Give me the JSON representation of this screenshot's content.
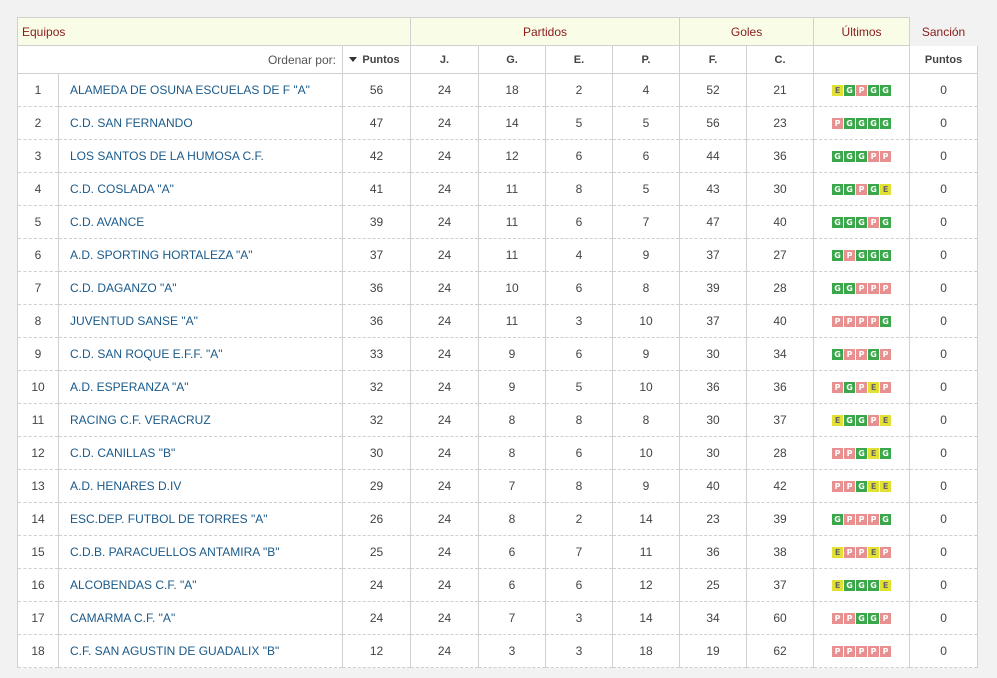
{
  "headers": {
    "equipos": "Equipos",
    "partidos": "Partidos",
    "goles": "Goles",
    "ultimos": "Últimos",
    "sancion": "Sanción",
    "ordenar_por": "Ordenar por:",
    "puntos": "Puntos",
    "j": "J.",
    "g": "G.",
    "e": "E.",
    "p": "P.",
    "f": "F.",
    "c": "C.",
    "sancion_puntos": "Puntos"
  },
  "colors": {
    "win": "#3aa84a",
    "loss": "#e89090",
    "draw": "#e2e034",
    "team_link": "#1a5a8a",
    "header_text": "#8b1a1a"
  },
  "rows": [
    {
      "pos": "1",
      "team": "ALAMEDA DE OSUNA ESCUELAS DE F \"A\"",
      "pts": "56",
      "j": "24",
      "g": "18",
      "e": "2",
      "p": "4",
      "f": "52",
      "c": "21",
      "last": [
        "E",
        "G",
        "P",
        "G",
        "G"
      ],
      "sancion": "0"
    },
    {
      "pos": "2",
      "team": "C.D. SAN FERNANDO",
      "pts": "47",
      "j": "24",
      "g": "14",
      "e": "5",
      "p": "5",
      "f": "56",
      "c": "23",
      "last": [
        "P",
        "G",
        "G",
        "G",
        "G"
      ],
      "sancion": "0"
    },
    {
      "pos": "3",
      "team": "LOS SANTOS DE LA HUMOSA C.F.",
      "pts": "42",
      "j": "24",
      "g": "12",
      "e": "6",
      "p": "6",
      "f": "44",
      "c": "36",
      "last": [
        "G",
        "G",
        "G",
        "P",
        "P"
      ],
      "sancion": "0"
    },
    {
      "pos": "4",
      "team": "C.D. COSLADA \"A\"",
      "pts": "41",
      "j": "24",
      "g": "11",
      "e": "8",
      "p": "5",
      "f": "43",
      "c": "30",
      "last": [
        "G",
        "G",
        "P",
        "G",
        "E"
      ],
      "sancion": "0"
    },
    {
      "pos": "5",
      "team": "C.D. AVANCE",
      "pts": "39",
      "j": "24",
      "g": "11",
      "e": "6",
      "p": "7",
      "f": "47",
      "c": "40",
      "last": [
        "G",
        "G",
        "G",
        "P",
        "G"
      ],
      "sancion": "0"
    },
    {
      "pos": "6",
      "team": "A.D. SPORTING HORTALEZA \"A\"",
      "pts": "37",
      "j": "24",
      "g": "11",
      "e": "4",
      "p": "9",
      "f": "37",
      "c": "27",
      "last": [
        "G",
        "P",
        "G",
        "G",
        "G"
      ],
      "sancion": "0"
    },
    {
      "pos": "7",
      "team": "C.D. DAGANZO \"A\"",
      "pts": "36",
      "j": "24",
      "g": "10",
      "e": "6",
      "p": "8",
      "f": "39",
      "c": "28",
      "last": [
        "G",
        "G",
        "P",
        "P",
        "P"
      ],
      "sancion": "0"
    },
    {
      "pos": "8",
      "team": "JUVENTUD SANSE \"A\"",
      "pts": "36",
      "j": "24",
      "g": "11",
      "e": "3",
      "p": "10",
      "f": "37",
      "c": "40",
      "last": [
        "P",
        "P",
        "P",
        "P",
        "G"
      ],
      "sancion": "0"
    },
    {
      "pos": "9",
      "team": "C.D. SAN ROQUE E.F.F. \"A\"",
      "pts": "33",
      "j": "24",
      "g": "9",
      "e": "6",
      "p": "9",
      "f": "30",
      "c": "34",
      "last": [
        "G",
        "P",
        "P",
        "G",
        "P"
      ],
      "sancion": "0"
    },
    {
      "pos": "10",
      "team": "A.D. ESPERANZA \"A\"",
      "pts": "32",
      "j": "24",
      "g": "9",
      "e": "5",
      "p": "10",
      "f": "36",
      "c": "36",
      "last": [
        "P",
        "G",
        "P",
        "E",
        "P"
      ],
      "sancion": "0"
    },
    {
      "pos": "11",
      "team": "RACING C.F. VERACRUZ",
      "pts": "32",
      "j": "24",
      "g": "8",
      "e": "8",
      "p": "8",
      "f": "30",
      "c": "37",
      "last": [
        "E",
        "G",
        "G",
        "P",
        "E"
      ],
      "sancion": "0"
    },
    {
      "pos": "12",
      "team": "C.D. CANILLAS \"B\"",
      "pts": "30",
      "j": "24",
      "g": "8",
      "e": "6",
      "p": "10",
      "f": "30",
      "c": "28",
      "last": [
        "P",
        "P",
        "G",
        "E",
        "G"
      ],
      "sancion": "0"
    },
    {
      "pos": "13",
      "team": "A.D. HENARES D.IV",
      "pts": "29",
      "j": "24",
      "g": "7",
      "e": "8",
      "p": "9",
      "f": "40",
      "c": "42",
      "last": [
        "P",
        "P",
        "G",
        "E",
        "E"
      ],
      "sancion": "0"
    },
    {
      "pos": "14",
      "team": "ESC.DEP. FUTBOL DE TORRES \"A\"",
      "pts": "26",
      "j": "24",
      "g": "8",
      "e": "2",
      "p": "14",
      "f": "23",
      "c": "39",
      "last": [
        "G",
        "P",
        "P",
        "P",
        "G"
      ],
      "sancion": "0"
    },
    {
      "pos": "15",
      "team": "C.D.B. PARACUELLOS ANTAMIRA \"B\"",
      "pts": "25",
      "j": "24",
      "g": "6",
      "e": "7",
      "p": "11",
      "f": "36",
      "c": "38",
      "last": [
        "E",
        "P",
        "P",
        "E",
        "P"
      ],
      "sancion": "0"
    },
    {
      "pos": "16",
      "team": "ALCOBENDAS C.F. \"A\"",
      "pts": "24",
      "j": "24",
      "g": "6",
      "e": "6",
      "p": "12",
      "f": "25",
      "c": "37",
      "last": [
        "E",
        "G",
        "G",
        "G",
        "E"
      ],
      "sancion": "0"
    },
    {
      "pos": "17",
      "team": "CAMARMA C.F. \"A\"",
      "pts": "24",
      "j": "24",
      "g": "7",
      "e": "3",
      "p": "14",
      "f": "34",
      "c": "60",
      "last": [
        "P",
        "P",
        "G",
        "G",
        "P"
      ],
      "sancion": "0"
    },
    {
      "pos": "18",
      "team": "C.F. SAN AGUSTIN DE GUADALIX \"B\"",
      "pts": "12",
      "j": "24",
      "g": "3",
      "e": "3",
      "p": "18",
      "f": "19",
      "c": "62",
      "last": [
        "P",
        "P",
        "P",
        "P",
        "P"
      ],
      "sancion": "0"
    }
  ]
}
